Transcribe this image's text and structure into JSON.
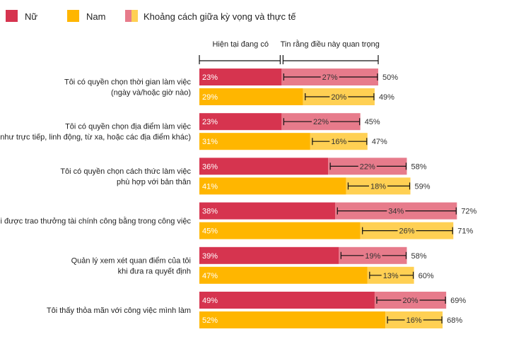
{
  "chart_data": {
    "type": "bar",
    "orientation": "horizontal",
    "stacked": true,
    "legend": {
      "position": "top-left",
      "items": [
        {
          "label": "Nữ",
          "color": "#d6344f"
        },
        {
          "label": "Nam",
          "color": "#ffb600"
        },
        {
          "label": "Khoảng cách giữa kỳ vọng và thực tế",
          "colors": [
            "#e77b8b",
            "#ffd053"
          ]
        }
      ]
    },
    "header": {
      "current_label": "Hiện tại đang có",
      "important_label": "Tin rằng điều này quan trọng"
    },
    "xlim": [
      0,
      100
    ],
    "categories": [
      [
        "Tôi có quyền chọn thời gian làm việc",
        "(ngày và/hoặc giờ nào)"
      ],
      [
        "Tôi có quyền chọn địa điểm làm việc",
        "(ví dụ như trực tiếp, linh động, từ xa, hoặc các địa điểm khác)"
      ],
      [
        "Tôi có quyền chọn cách thức làm việc",
        "phù hợp với bản thân"
      ],
      [
        "Tôi được trao thưởng tài chính công bằng trong công việc"
      ],
      [
        "Quản lý xem xét quan điểm của tôi",
        "khi đưa ra quyết định"
      ],
      [
        "Tôi thấy thỏa mãn với công việc mình làm"
      ]
    ],
    "series": [
      {
        "name": "Nữ",
        "current": [
          23,
          23,
          36,
          38,
          39,
          49
        ],
        "gap": [
          27,
          22,
          22,
          34,
          19,
          20
        ],
        "important": [
          50,
          45,
          58,
          72,
          58,
          69
        ]
      },
      {
        "name": "Nam",
        "current": [
          29,
          31,
          41,
          45,
          47,
          52
        ],
        "gap": [
          20,
          16,
          18,
          26,
          13,
          16
        ],
        "important": [
          49,
          47,
          59,
          71,
          60,
          68
        ]
      }
    ],
    "colors": {
      "female_current": "#d6344f",
      "female_gap": "#e77b8b",
      "male_current": "#ffb600",
      "male_gap": "#ffd053",
      "value_text": "#ffffff",
      "label_text": "#222222",
      "line": "#111111"
    },
    "value_suffix": "%"
  }
}
